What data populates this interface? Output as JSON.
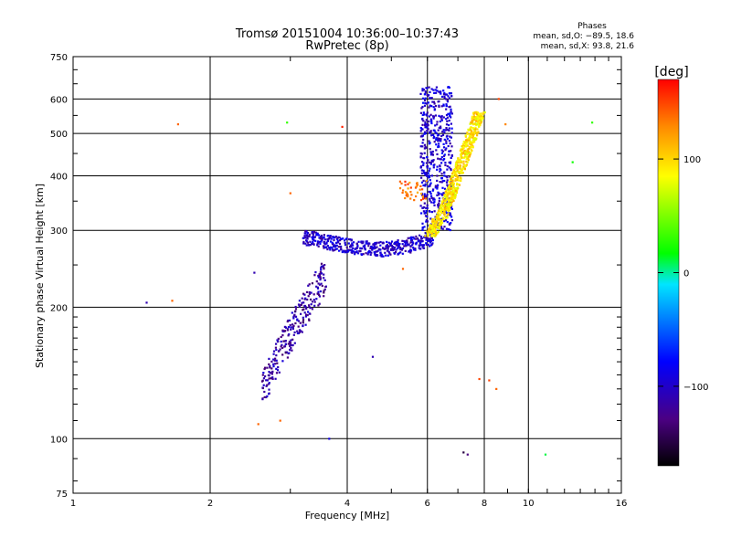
{
  "chart_data": {
    "type": "scatter",
    "title_line1": "Tromsø 20151004 10:36:00–10:37:43",
    "title_line2": "RwPretec (8p)",
    "legend_title": "Phases",
    "legend_line1": "mean, sd,O: −89.5, 18.6",
    "legend_line2": "mean, sd,X:  93.8, 21.6",
    "xlabel": "Frequency [MHz]",
    "ylabel": "Stationary phase Virtual Height [km]",
    "x_scale": "log2",
    "y_scale": "log",
    "xlim": [
      1,
      16
    ],
    "ylim": [
      75,
      750
    ],
    "x_ticks": [
      1,
      2,
      4,
      6,
      8,
      10,
      16
    ],
    "x_tick_labels": [
      "1",
      "2",
      "4",
      "6",
      "8",
      "10",
      "16"
    ],
    "y_ticks": [
      75,
      100,
      200,
      300,
      400,
      500,
      600,
      750
    ],
    "y_tick_labels": [
      "75",
      "100",
      "200",
      "300",
      "400",
      "500",
      "600",
      "750"
    ],
    "grid": true,
    "colorbar": {
      "label": "[deg]",
      "range": [
        -170,
        170
      ],
      "ticks": [
        100,
        0,
        -100
      ],
      "tick_labels": [
        "100",
        "0",
        "−100"
      ]
    },
    "clusters": [
      {
        "name": "E-trace lower echoes",
        "freq_range": [
          2.6,
          3.6
        ],
        "height_range": [
          128,
          245
        ],
        "phase": -115
      },
      {
        "name": "F-layer O-mode trace",
        "freq_range": [
          3.2,
          6.2
        ],
        "height_range": [
          270,
          310
        ],
        "phase": -100
      },
      {
        "name": "F-layer O-mode cusp",
        "freq_range": [
          5.8,
          6.8
        ],
        "height_range": [
          300,
          640
        ],
        "phase": -95
      },
      {
        "name": "F-layer X-mode trace",
        "freq_range": [
          6.2,
          8.0
        ],
        "height_range": [
          290,
          560
        ],
        "phase": 95
      },
      {
        "name": "Sporadic-E patch",
        "freq_range": [
          5.2,
          6.0
        ],
        "height_range": [
          350,
          390
        ],
        "phase": 135
      }
    ],
    "points": [
      {
        "f": 1.45,
        "h": 205,
        "p": -110
      },
      {
        "f": 1.65,
        "h": 207,
        "p": 140
      },
      {
        "f": 1.7,
        "h": 525,
        "p": 140
      },
      {
        "f": 2.5,
        "h": 240,
        "p": -110
      },
      {
        "f": 2.55,
        "h": 108,
        "p": 140
      },
      {
        "f": 2.85,
        "h": 110,
        "p": 140
      },
      {
        "f": 2.95,
        "h": 530,
        "p": 30
      },
      {
        "f": 3.0,
        "h": 365,
        "p": 140
      },
      {
        "f": 3.65,
        "h": 100,
        "p": -90
      },
      {
        "f": 3.9,
        "h": 518,
        "p": 160
      },
      {
        "f": 4.55,
        "h": 154,
        "p": -110
      },
      {
        "f": 5.3,
        "h": 245,
        "p": 140
      },
      {
        "f": 7.2,
        "h": 93,
        "p": -150
      },
      {
        "f": 7.35,
        "h": 92,
        "p": -130
      },
      {
        "f": 7.8,
        "h": 137,
        "p": 150
      },
      {
        "f": 8.2,
        "h": 136,
        "p": 150
      },
      {
        "f": 8.5,
        "h": 130,
        "p": 140
      },
      {
        "f": 10.9,
        "h": 92,
        "p": 10
      },
      {
        "f": 12.5,
        "h": 430,
        "p": 20
      },
      {
        "f": 13.8,
        "h": 530,
        "p": 30
      },
      {
        "f": 8.9,
        "h": 525,
        "p": 130
      },
      {
        "f": 8.6,
        "h": 600,
        "p": 150
      }
    ]
  }
}
